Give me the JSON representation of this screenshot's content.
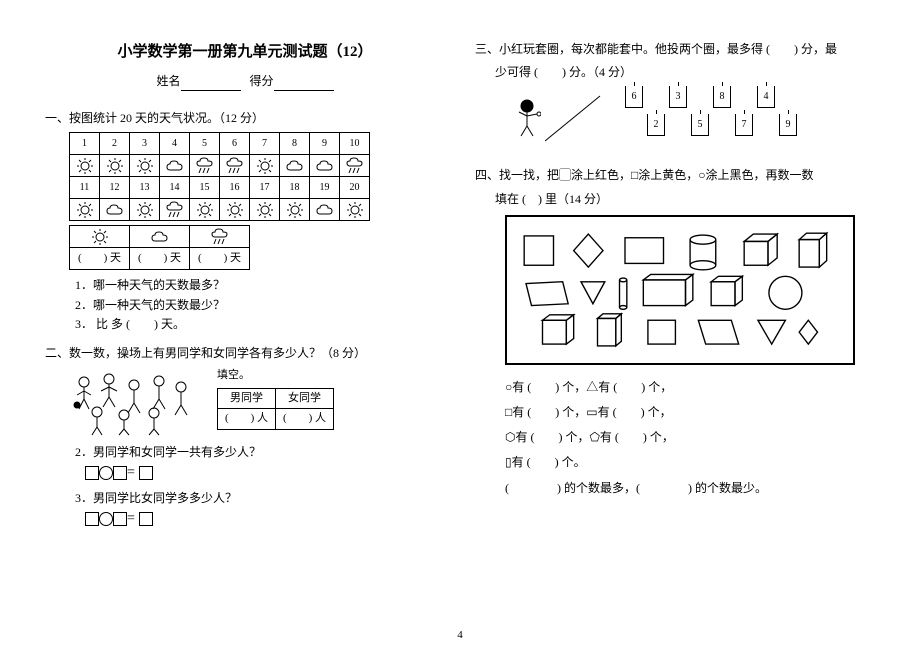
{
  "title": "小学数学第一册第九单元测试题（12）",
  "name_label": "姓名",
  "score_label": "得分",
  "page_number": "4",
  "sec1": {
    "head": "一、按图统计 20 天的天气状况。（12 分）",
    "days_row1": [
      "1",
      "2",
      "3",
      "4",
      "5",
      "6",
      "7",
      "8",
      "9",
      "10"
    ],
    "icons_row1": [
      "sun",
      "sun",
      "sun",
      "cloud",
      "rain",
      "rain",
      "sun",
      "cloud",
      "cloud",
      "rain"
    ],
    "days_row2": [
      "11",
      "12",
      "13",
      "14",
      "15",
      "16",
      "17",
      "18",
      "19",
      "20"
    ],
    "icons_row2": [
      "sun",
      "cloud",
      "sun",
      "rain",
      "sun",
      "sun",
      "sun",
      "sun",
      "cloud",
      "sun"
    ],
    "summary_icons": [
      "sun",
      "cloud",
      "rain"
    ],
    "summary_labels": [
      "(　　) 天",
      "(　　) 天",
      "(　　) 天"
    ],
    "q1": "1．哪一种天气的天数最多？",
    "q2": "2．哪一种天气的天数最少？",
    "q3_pre": "3．",
    "q3_mid": "比",
    "q3_post": "多 (　　) 天。"
  },
  "sec2": {
    "head": "二、数一数，操场上有男同学和女同学各有多少人？（8 分）",
    "fill": "填空。",
    "col1": "男同学",
    "col2": "女同学",
    "cell1": "(　　) 人",
    "cell2": "(　　) 人",
    "q2": "2．男同学和女同学一共有多少人？",
    "q3": "3．男同学比女同学多多少人？"
  },
  "sec3": {
    "head": "三、小红玩套圈，每次都能套中。他投两个圈，最多得 (　　) 分，最",
    "head2": "少可得 (　　) 分。（4 分）",
    "targets_row1": [
      "6",
      "3",
      "8",
      "4"
    ],
    "targets_row2": [
      "2",
      "5",
      "7",
      "9"
    ]
  },
  "sec4": {
    "head": "四、找一找，把▢涂上红色，□涂上黄色，○涂上黑色，再数一数",
    "head2": "填在 (　) 里（14 分）",
    "l1a": "○有 (　　) 个，",
    "l1b": "△有 (　　) 个，",
    "l2a": "□有 (　　) 个，",
    "l2b": "▭有 (　　) 个，",
    "l3a": "⬡有 (　　) 个，",
    "l3b": "⬠有 (　　) 个，",
    "l4a": "▯有 (　　) 个。",
    "l5": "(　　　　) 的个数最多，(　　　　) 的个数最少。"
  },
  "colors": {
    "ink": "#000000",
    "bg": "#ffffff"
  }
}
